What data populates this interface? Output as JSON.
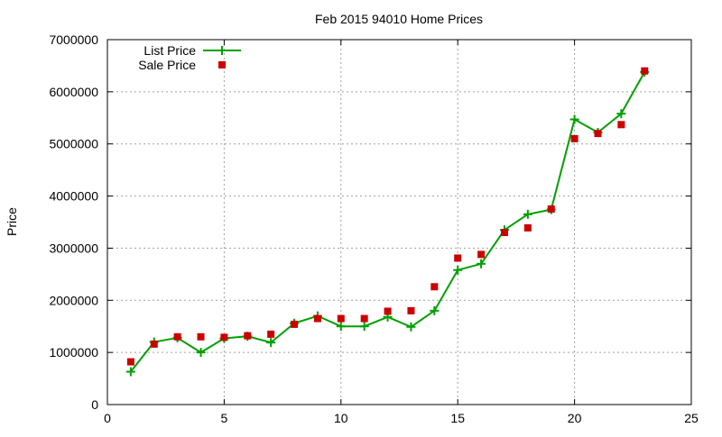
{
  "chart_data": {
    "type": "line",
    "title": "Feb 2015 94010 Home Prices",
    "xlabel": "",
    "ylabel": "Price",
    "xlim": [
      0,
      25
    ],
    "ylim": [
      0,
      7000000
    ],
    "x_ticks": [
      0,
      5,
      10,
      15,
      20,
      25
    ],
    "y_ticks": [
      0,
      1000000,
      2000000,
      3000000,
      4000000,
      5000000,
      6000000,
      7000000
    ],
    "x_tick_labels": [
      "0",
      "5",
      "10",
      "15",
      "20",
      "25"
    ],
    "y_tick_labels": [
      "0",
      "1000000",
      "2000000",
      "3000000",
      "4000000",
      "5000000",
      "6000000",
      "7000000"
    ],
    "grid": true,
    "legend_position": "top-left",
    "series": [
      {
        "name": "List Price",
        "style": "line with plus markers",
        "color": "#00a000",
        "x": [
          1,
          2,
          3,
          4,
          5,
          6,
          7,
          8,
          9,
          10,
          11,
          12,
          13,
          14,
          15,
          16,
          17,
          18,
          19,
          20,
          21,
          22,
          23
        ],
        "y": [
          630000,
          1200000,
          1280000,
          1000000,
          1270000,
          1310000,
          1190000,
          1560000,
          1700000,
          1500000,
          1500000,
          1680000,
          1490000,
          1800000,
          2580000,
          2700000,
          3350000,
          3650000,
          3740000,
          5470000,
          5220000,
          5580000,
          6380000
        ]
      },
      {
        "name": "Sale Price",
        "style": "square markers",
        "color": "#cc0000",
        "x": [
          1,
          2,
          3,
          4,
          5,
          6,
          7,
          8,
          9,
          10,
          11,
          12,
          13,
          14,
          15,
          16,
          17,
          18,
          19,
          20,
          21,
          22,
          23
        ],
        "y": [
          820000,
          1160000,
          1300000,
          1300000,
          1290000,
          1320000,
          1350000,
          1540000,
          1650000,
          1650000,
          1650000,
          1790000,
          1800000,
          2260000,
          2810000,
          2880000,
          3300000,
          3390000,
          3750000,
          5100000,
          5200000,
          5370000,
          6400000
        ]
      }
    ]
  }
}
